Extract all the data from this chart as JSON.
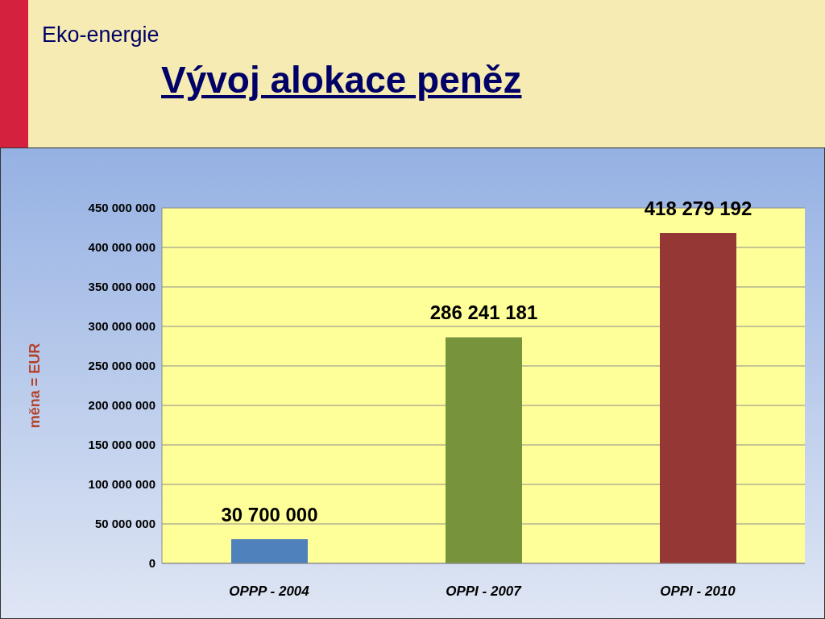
{
  "chart_data": {
    "type": "bar",
    "title": "Vývoj alokace peněz",
    "subtitle": "Eko-energie",
    "ylabel": "měna = EUR",
    "categories": [
      "OPPP - 2004",
      "OPPI - 2007",
      "OPPI - 2010"
    ],
    "values": [
      30700000,
      286241181,
      418279192
    ],
    "colors": [
      "#4f81bd",
      "#77933c",
      "#953735"
    ],
    "value_labels": [
      "30 700 000",
      "286 241 181",
      "418 279 192"
    ],
    "ylim": [
      0,
      450000000
    ],
    "yticks": [
      {
        "value": 0,
        "label": "0"
      },
      {
        "value": 50000000,
        "label": "50 000 000"
      },
      {
        "value": 100000000,
        "label": "100 000 000"
      },
      {
        "value": 150000000,
        "label": "150 000 000"
      },
      {
        "value": 200000000,
        "label": "200 000 000"
      },
      {
        "value": 250000000,
        "label": "250 000 000"
      },
      {
        "value": 300000000,
        "label": "300 000 000"
      },
      {
        "value": 350000000,
        "label": "350 000 000"
      },
      {
        "value": 400000000,
        "label": "400 000 000"
      },
      {
        "value": 450000000,
        "label": "450 000 000"
      }
    ],
    "grid": "y"
  }
}
